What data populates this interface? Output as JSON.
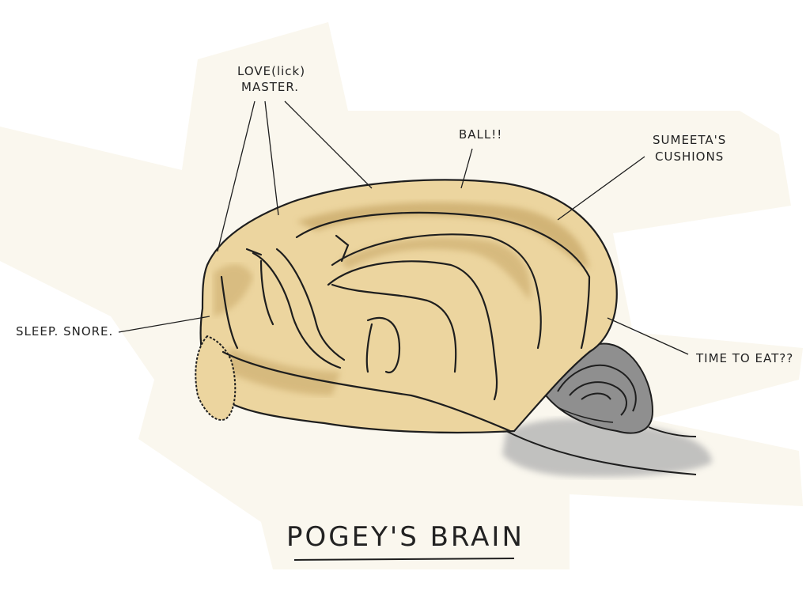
{
  "diagram": {
    "title": "POGEY'S BRAIN",
    "labels": {
      "love_line1": "LOVE(lick)",
      "love_line2": "MASTER.",
      "ball": "BALL!!",
      "sumeeta_line1": "SUMEETA'S",
      "sumeeta_line2": "CUSHIONS",
      "sleep": "SLEEP. SNORE.",
      "time_to_eat": "TIME TO EAT??"
    },
    "colors": {
      "paper": "#faf7ee",
      "brain_fill": "#ecd59f",
      "brain_shade": "#c9a969",
      "cerebellum": "#8c8c8c",
      "brainstem_shadow": "#b4b4b4",
      "ink": "#1e1e1e"
    }
  }
}
